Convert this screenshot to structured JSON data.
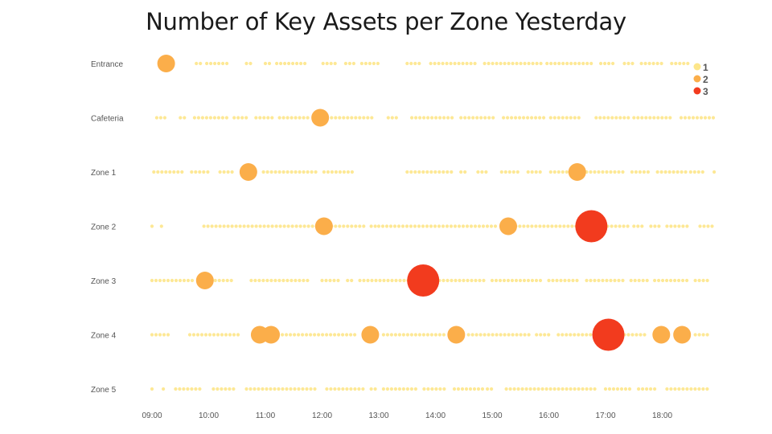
{
  "chart_data": {
    "type": "scatter",
    "title": "Number of Key Assets per Zone Yesterday",
    "xlabel": "",
    "ylabel": "",
    "categories": [
      "Entrance",
      "Cafeteria",
      "Zone 1",
      "Zone 2",
      "Zone 3",
      "Zone 4",
      "Zone 5"
    ],
    "x_ticks": [
      "09:00",
      "10:00",
      "11:00",
      "12:00",
      "13:00",
      "14:00",
      "15:00",
      "16:00",
      "17:00",
      "18:00"
    ],
    "xlim": [
      "09:00",
      "19:00"
    ],
    "legend": {
      "placement": "top-right",
      "entries": [
        "1",
        "2",
        "3"
      ]
    },
    "colors": {
      "1": "#fde68a",
      "2": "#fbae4a",
      "3": "#f23b1e"
    },
    "grid": false,
    "series": [
      {
        "name": "2",
        "points": [
          {
            "zone": "Entrance",
            "time": "09:15"
          },
          {
            "zone": "Cafeteria",
            "time": "11:58"
          },
          {
            "zone": "Zone 1",
            "time": "10:42"
          },
          {
            "zone": "Zone 1",
            "time": "16:30"
          },
          {
            "zone": "Zone 2",
            "time": "12:02"
          },
          {
            "zone": "Zone 2",
            "time": "15:17"
          },
          {
            "zone": "Zone 3",
            "time": "09:56"
          },
          {
            "zone": "Zone 4",
            "time": "10:54"
          },
          {
            "zone": "Zone 4",
            "time": "11:06"
          },
          {
            "zone": "Zone 4",
            "time": "12:51"
          },
          {
            "zone": "Zone 4",
            "time": "14:22"
          },
          {
            "zone": "Zone 4",
            "time": "17:59"
          },
          {
            "zone": "Zone 4",
            "time": "18:21"
          }
        ]
      },
      {
        "name": "3",
        "points": [
          {
            "zone": "Zone 2",
            "time": "16:45"
          },
          {
            "zone": "Zone 3",
            "time": "13:47"
          },
          {
            "zone": "Zone 4",
            "time": "17:03"
          }
        ]
      }
    ],
    "background_series": {
      "name": "1",
      "segments": {
        "Entrance": [
          [
            "09:47",
            "09:55"
          ],
          [
            "09:58",
            "10:20"
          ],
          [
            "10:40",
            "10:46"
          ],
          [
            "11:00",
            "11:06"
          ],
          [
            "11:12",
            "11:45"
          ],
          [
            "12:01",
            "12:18"
          ],
          [
            "12:25",
            "12:34"
          ],
          [
            "12:42",
            "13:00"
          ],
          [
            "13:30",
            "13:45"
          ],
          [
            "13:55",
            "14:42"
          ],
          [
            "14:52",
            "15:55"
          ],
          [
            "15:58",
            "16:45"
          ],
          [
            "16:55",
            "17:10"
          ],
          [
            "17:20",
            "17:30"
          ],
          [
            "17:38",
            "18:00"
          ],
          [
            "18:10",
            "18:30"
          ]
        ],
        "Cafeteria": [
          [
            "09:05",
            "09:15"
          ],
          [
            "09:30",
            "09:38"
          ],
          [
            "09:45",
            "10:20"
          ],
          [
            "10:27",
            "10:40"
          ],
          [
            "10:50",
            "11:10"
          ],
          [
            "11:15",
            "11:45"
          ],
          [
            "12:10",
            "12:55"
          ],
          [
            "13:10",
            "13:20"
          ],
          [
            "13:35",
            "14:20"
          ],
          [
            "14:27",
            "15:05"
          ],
          [
            "15:12",
            "15:55"
          ],
          [
            "16:02",
            "16:35"
          ],
          [
            "16:50",
            "17:25"
          ],
          [
            "17:30",
            "18:10"
          ],
          [
            "18:20",
            "18:55"
          ]
        ],
        "Zone 1": [
          [
            "09:02",
            "09:35"
          ],
          [
            "09:42",
            "10:03"
          ],
          [
            "10:12",
            "10:26"
          ],
          [
            "10:58",
            "11:55"
          ],
          [
            "12:02",
            "12:35"
          ],
          [
            "13:30",
            "14:20"
          ],
          [
            "14:27",
            "14:35"
          ],
          [
            "14:45",
            "14:55"
          ],
          [
            "15:10",
            "15:30"
          ],
          [
            "15:38",
            "15:55"
          ],
          [
            "16:02",
            "16:20"
          ],
          [
            "16:40",
            "17:20"
          ],
          [
            "17:28",
            "17:47"
          ],
          [
            "17:55",
            "18:25"
          ],
          [
            "18:30",
            "18:45"
          ],
          [
            "18:55",
            "18:58"
          ]
        ],
        "Zone 2": [
          [
            "09:00",
            "09:02"
          ],
          [
            "09:10",
            "09:13"
          ],
          [
            "09:55",
            "11:55"
          ],
          [
            "12:10",
            "12:45"
          ],
          [
            "12:52",
            "13:00"
          ],
          [
            "13:00",
            "15:05"
          ],
          [
            "15:25",
            "16:32"
          ],
          [
            "16:58",
            "17:25"
          ],
          [
            "17:30",
            "17:40"
          ],
          [
            "17:48",
            "18:00"
          ],
          [
            "18:05",
            "18:30"
          ],
          [
            "18:40",
            "18:56"
          ]
        ],
        "Zone 3": [
          [
            "09:00",
            "09:45"
          ],
          [
            "10:07",
            "10:25"
          ],
          [
            "10:45",
            "11:45"
          ],
          [
            "12:00",
            "12:20"
          ],
          [
            "12:27",
            "12:34"
          ],
          [
            "12:40",
            "13:35"
          ],
          [
            "14:00",
            "14:55"
          ],
          [
            "15:00",
            "15:55"
          ],
          [
            "16:00",
            "16:32"
          ],
          [
            "16:40",
            "17:20"
          ],
          [
            "17:27",
            "17:45"
          ],
          [
            "17:52",
            "18:30"
          ],
          [
            "18:35",
            "18:50"
          ]
        ],
        "Zone 4": [
          [
            "09:00",
            "09:20"
          ],
          [
            "09:40",
            "10:35"
          ],
          [
            "11:18",
            "12:35"
          ],
          [
            "13:05",
            "14:10"
          ],
          [
            "14:35",
            "15:40"
          ],
          [
            "15:47",
            "16:02"
          ],
          [
            "16:10",
            "16:50"
          ],
          [
            "17:20",
            "17:45"
          ],
          [
            "18:35",
            "18:48"
          ]
        ],
        "Zone 5": [
          [
            "09:00",
            "09:02"
          ],
          [
            "09:12",
            "09:14"
          ],
          [
            "09:25",
            "09:52"
          ],
          [
            "10:05",
            "10:30"
          ],
          [
            "10:40",
            "11:55"
          ],
          [
            "12:05",
            "12:45"
          ],
          [
            "12:52",
            "13:00"
          ],
          [
            "13:05",
            "13:40"
          ],
          [
            "13:48",
            "14:12"
          ],
          [
            "14:20",
            "14:50"
          ],
          [
            "14:55",
            "15:00"
          ],
          [
            "15:15",
            "16:50"
          ],
          [
            "17:00",
            "17:28"
          ],
          [
            "17:35",
            "17:55"
          ],
          [
            "18:05",
            "18:50"
          ]
        ]
      }
    }
  }
}
